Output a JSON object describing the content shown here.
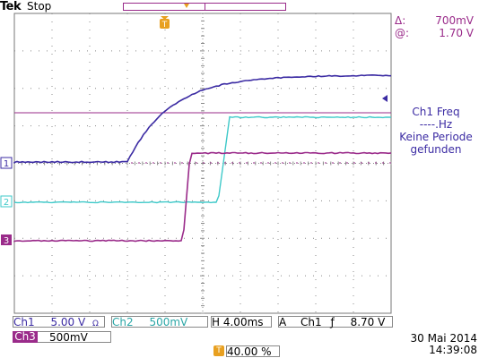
{
  "header": {
    "brand": "Tek",
    "state": "Stop"
  },
  "cursor_readout": {
    "delta_symbol": "Δ:",
    "delta_value": "700mV",
    "at_symbol": "@:",
    "at_value": "1.70 V"
  },
  "measurement": {
    "label": "Ch1 Freq",
    "value": "----.Hz",
    "message_line1": "Keine Periode",
    "message_line2": "gefunden"
  },
  "channels": {
    "ch1": {
      "label": "Ch1",
      "scale": "5.00 V",
      "marker": "1",
      "color": "#3b2ba3"
    },
    "ch2": {
      "label": "Ch2",
      "scale": "500mV",
      "marker": "2",
      "color": "#3ec9c9"
    },
    "ch3": {
      "label": "Ch3",
      "scale": "500mV",
      "marker": "3",
      "color": "#9a2b8a"
    }
  },
  "horizontal": {
    "label": "H",
    "scale": "4.00ms"
  },
  "trigger": {
    "mode": "A",
    "source": "Ch1",
    "slope": "ƒ",
    "level": "8.70 V"
  },
  "trigger_position": "40.00 %",
  "coupling_ch2": "Ω",
  "date": "30 Mai  2014",
  "time": "14:39:08",
  "colors": {
    "grid": "#999999",
    "cursor": "#9a2b8a",
    "trigger_marker": "#e8a020"
  }
}
